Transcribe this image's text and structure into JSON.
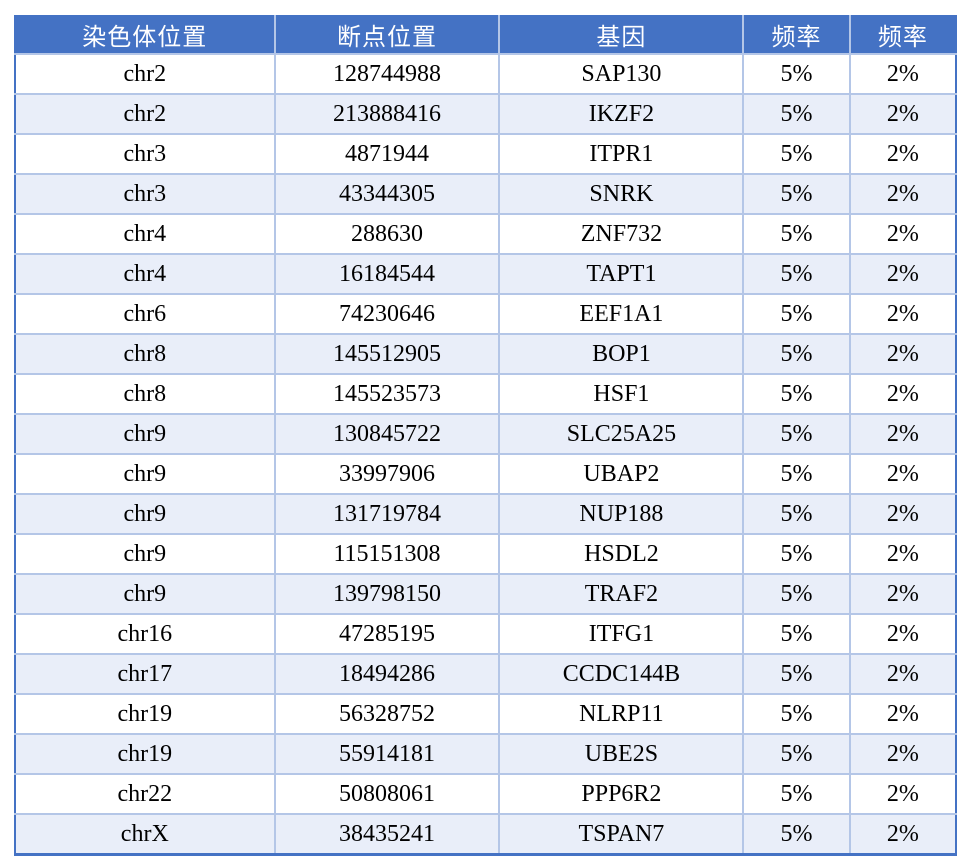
{
  "table": {
    "headers": [
      "染色体位置",
      "断点位置",
      "基因",
      "频率",
      "频率"
    ],
    "rows": [
      [
        "chr2",
        "128744988",
        "SAP130",
        "5%",
        "2%"
      ],
      [
        "chr2",
        "213888416",
        "IKZF2",
        "5%",
        "2%"
      ],
      [
        "chr3",
        "4871944",
        "ITPR1",
        "5%",
        "2%"
      ],
      [
        "chr3",
        "43344305",
        "SNRK",
        "5%",
        "2%"
      ],
      [
        "chr4",
        "288630",
        "ZNF732",
        "5%",
        "2%"
      ],
      [
        "chr4",
        "16184544",
        "TAPT1",
        "5%",
        "2%"
      ],
      [
        "chr6",
        "74230646",
        "EEF1A1",
        "5%",
        "2%"
      ],
      [
        "chr8",
        "145512905",
        "BOP1",
        "5%",
        "2%"
      ],
      [
        "chr8",
        "145523573",
        "HSF1",
        "5%",
        "2%"
      ],
      [
        "chr9",
        "130845722",
        "SLC25A25",
        "5%",
        "2%"
      ],
      [
        "chr9",
        "33997906",
        "UBAP2",
        "5%",
        "2%"
      ],
      [
        "chr9",
        "131719784",
        "NUP188",
        "5%",
        "2%"
      ],
      [
        "chr9",
        "115151308",
        "HSDL2",
        "5%",
        "2%"
      ],
      [
        "chr9",
        "139798150",
        "TRAF2",
        "5%",
        "2%"
      ],
      [
        "chr16",
        "47285195",
        "ITFG1",
        "5%",
        "2%"
      ],
      [
        "chr17",
        "18494286",
        "CCDC144B",
        "5%",
        "2%"
      ],
      [
        "chr19",
        "56328752",
        "NLRP11",
        "5%",
        "2%"
      ],
      [
        "chr19",
        "55914181",
        "UBE2S",
        "5%",
        "2%"
      ],
      [
        "chr22",
        "50808061",
        "PPP6R2",
        "5%",
        "2%"
      ],
      [
        "chrX",
        "38435241",
        "TSPAN7",
        "5%",
        "2%"
      ]
    ]
  },
  "colors": {
    "header_bg": "#4472C4",
    "alt_row_bg": "#E9EEF9",
    "grid": "#B4C6E7"
  }
}
